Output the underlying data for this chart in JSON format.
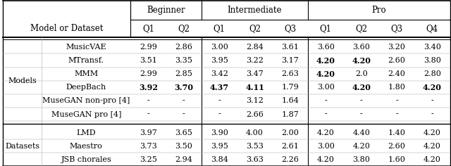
{
  "col_groups": [
    {
      "label": "",
      "span": 1
    },
    {
      "label": "Beginner",
      "span": 2
    },
    {
      "label": "Intermediate",
      "span": 3
    },
    {
      "label": "Pro",
      "span": 4
    }
  ],
  "rows": [
    {
      "section": "Models",
      "name": "MusicVAE",
      "values": [
        "2.99",
        "2.86",
        "3.00",
        "2.84",
        "3.61",
        "3.60",
        "3.60",
        "3.20",
        "3.40"
      ],
      "bold": [
        false,
        false,
        false,
        false,
        false,
        false,
        false,
        false,
        false
      ]
    },
    {
      "section": "Models",
      "name": "MTransf.",
      "values": [
        "3.51",
        "3.35",
        "3.95",
        "3.22",
        "3.17",
        "4.20",
        "4.20",
        "2.60",
        "3.80"
      ],
      "bold": [
        false,
        false,
        false,
        false,
        false,
        true,
        true,
        false,
        false
      ]
    },
    {
      "section": "Models",
      "name": "MMM",
      "values": [
        "2.99",
        "2.85",
        "3.42",
        "3.47",
        "2.63",
        "4.20",
        "2.0",
        "2.40",
        "2.80"
      ],
      "bold": [
        false,
        false,
        false,
        false,
        false,
        true,
        false,
        false,
        false
      ]
    },
    {
      "section": "Models",
      "name": "DeepBach",
      "values": [
        "3.92",
        "3.70",
        "4.37",
        "4.11",
        "1.79",
        "3.00",
        "4.20",
        "1.80",
        "4.20"
      ],
      "bold": [
        true,
        true,
        true,
        true,
        false,
        false,
        true,
        false,
        true
      ]
    },
    {
      "section": "Models",
      "name": "MuseGAN non-pro [4]",
      "values": [
        "-",
        "-",
        "-",
        "3.12",
        "1.64",
        "-",
        "-",
        "-",
        "-"
      ],
      "bold": [
        false,
        false,
        false,
        false,
        false,
        false,
        false,
        false,
        false
      ]
    },
    {
      "section": "Models",
      "name": "MuseGAN pro [4]",
      "values": [
        "-",
        "-",
        "-",
        "2.66",
        "1.87",
        "-",
        "-",
        "-",
        "-"
      ],
      "bold": [
        false,
        false,
        false,
        false,
        false,
        false,
        false,
        false,
        false
      ]
    },
    {
      "section": "Datasets",
      "name": "LMD",
      "values": [
        "3.97",
        "3.65",
        "3.90",
        "4.00",
        "2.00",
        "4.20",
        "4.40",
        "1.40",
        "4.20"
      ],
      "bold": [
        false,
        false,
        false,
        false,
        false,
        false,
        false,
        false,
        false
      ]
    },
    {
      "section": "Datasets",
      "name": "Maestro",
      "values": [
        "3.73",
        "3.50",
        "3.95",
        "3.53",
        "2.61",
        "3.00",
        "4.20",
        "2.60",
        "4.20"
      ],
      "bold": [
        false,
        false,
        false,
        false,
        false,
        false,
        false,
        false,
        false
      ]
    },
    {
      "section": "Datasets",
      "name": "JSB chorales",
      "values": [
        "3.25",
        "2.94",
        "3.84",
        "3.63",
        "2.26",
        "4.20",
        "3.80",
        "1.60",
        "4.20"
      ],
      "bold": [
        false,
        false,
        false,
        false,
        false,
        false,
        false,
        false,
        false
      ]
    }
  ],
  "bg_color": "#ffffff",
  "font_size": 8.0,
  "header_font_size": 8.5
}
